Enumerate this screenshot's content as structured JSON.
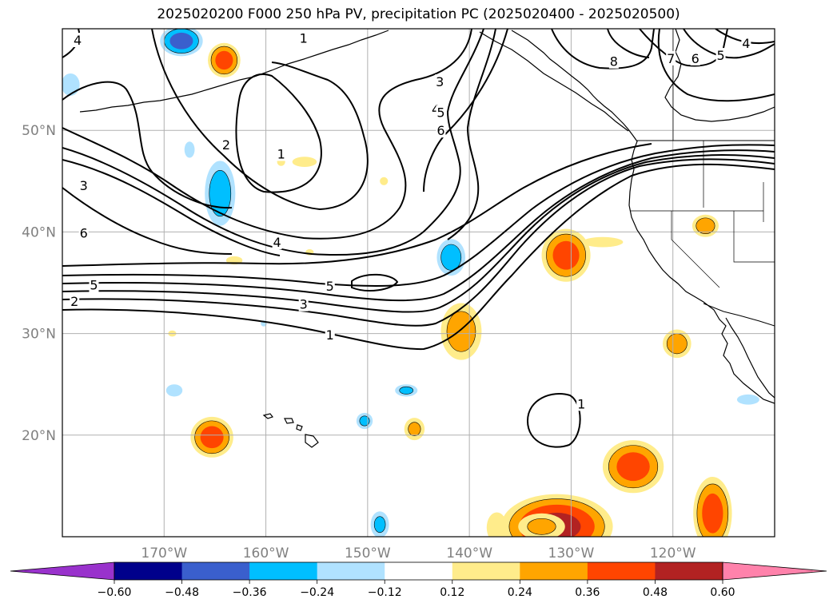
{
  "title": "2025020200 F000 250 hPa PV, precipitation PC (2025020400 - 2025020500)",
  "map": {
    "lon_range": [
      -180,
      -110
    ],
    "lat_range": [
      10,
      60
    ],
    "lon_ticks": [
      -170,
      -160,
      -150,
      -140,
      -130,
      -120
    ],
    "lat_ticks": [
      20,
      30,
      40,
      50
    ],
    "lon_labels": [
      "170°W",
      "160°W",
      "150°W",
      "140°W",
      "130°W",
      "120°W"
    ],
    "lat_labels": [
      "20°N",
      "30°N",
      "40°N",
      "50°N"
    ],
    "gridlines": true
  },
  "pv_contours": {
    "levels": [
      1,
      2,
      3,
      4,
      5,
      6,
      7,
      8
    ],
    "labels": [
      {
        "text": "4",
        "lon": -178.5,
        "lat": 58.9
      },
      {
        "text": "1",
        "lon": -156.3,
        "lat": 59.1
      },
      {
        "text": "3",
        "lon": -142.9,
        "lat": 54.8
      },
      {
        "text": "4",
        "lon": -143.3,
        "lat": 52.1
      },
      {
        "text": "5",
        "lon": -142.8,
        "lat": 51.8
      },
      {
        "text": "6",
        "lon": -142.8,
        "lat": 50.0
      },
      {
        "text": "8",
        "lon": -125.8,
        "lat": 56.8
      },
      {
        "text": "7",
        "lon": -120.2,
        "lat": 57.1
      },
      {
        "text": "6",
        "lon": -117.8,
        "lat": 57.1
      },
      {
        "text": "5",
        "lon": -115.3,
        "lat": 57.4
      },
      {
        "text": "4",
        "lon": -112.8,
        "lat": 58.6
      },
      {
        "text": "2",
        "lon": -163.9,
        "lat": 48.6
      },
      {
        "text": "1",
        "lon": -158.5,
        "lat": 47.7
      },
      {
        "text": "3",
        "lon": -177.9,
        "lat": 44.6
      },
      {
        "text": "6",
        "lon": -177.9,
        "lat": 39.9
      },
      {
        "text": "4",
        "lon": -158.9,
        "lat": 39.0
      },
      {
        "text": "5",
        "lon": -176.9,
        "lat": 34.8
      },
      {
        "text": "2",
        "lon": -178.8,
        "lat": 33.2
      },
      {
        "text": "5",
        "lon": -153.7,
        "lat": 34.7
      },
      {
        "text": "3",
        "lon": -156.3,
        "lat": 32.9
      },
      {
        "text": "1",
        "lon": -153.7,
        "lat": 29.9
      },
      {
        "text": "1",
        "lon": -129.0,
        "lat": 23.1
      }
    ]
  },
  "precip_pc": {
    "regions": [
      {
        "lon": -130.5,
        "lat": 37.7,
        "rx": 2.4,
        "ry": 2.6,
        "max": 0.4
      },
      {
        "lon": -123.9,
        "lat": 16.9,
        "rx": 3.0,
        "ry": 2.6,
        "max": 0.4
      },
      {
        "lon": -131.4,
        "lat": 11.0,
        "rx": 5.5,
        "ry": 3.2,
        "max": 0.5
      },
      {
        "lon": -116.1,
        "lat": 12.3,
        "rx": 1.9,
        "ry": 3.6,
        "max": 0.4
      },
      {
        "lon": -165.3,
        "lat": 19.8,
        "rx": 2.1,
        "ry": 2.0,
        "max": 0.4
      },
      {
        "lon": -164.1,
        "lat": 56.9,
        "rx": 1.6,
        "ry": 1.7,
        "max": 0.4
      },
      {
        "lon": -140.8,
        "lat": 30.2,
        "rx": 2.0,
        "ry": 2.8,
        "max": 0.3
      },
      {
        "lon": -119.6,
        "lat": 29.0,
        "rx": 1.4,
        "ry": 1.4,
        "max": 0.3
      },
      {
        "lon": -116.8,
        "lat": 40.6,
        "rx": 1.3,
        "ry": 1.1,
        "max": 0.3
      },
      {
        "lon": -145.4,
        "lat": 20.6,
        "rx": 1.0,
        "ry": 1.1,
        "max": 0.25
      },
      {
        "lon": -132.9,
        "lat": 11.0,
        "rx": 2.3,
        "ry": 1.3,
        "max": 0.25
      },
      {
        "lon": -137.3,
        "lat": 10.9,
        "rx": 1.0,
        "ry": 1.5,
        "max": 0.22
      },
      {
        "lon": -126.9,
        "lat": 39.0,
        "rx": 2.0,
        "ry": 0.5,
        "max": 0.24
      },
      {
        "lon": -156.2,
        "lat": 46.9,
        "rx": 1.2,
        "ry": 0.5,
        "max": 0.22
      },
      {
        "lon": -167.5,
        "lat": 58.6,
        "rx": 0.6,
        "ry": 0.4,
        "max": 0.2
      },
      {
        "lon": -158.5,
        "lat": 46.9,
        "rx": 0.4,
        "ry": 0.4,
        "max": 0.18
      },
      {
        "lon": -163.1,
        "lat": 37.2,
        "rx": 0.8,
        "ry": 0.4,
        "max": 0.18
      },
      {
        "lon": -155.7,
        "lat": 38.0,
        "rx": 0.4,
        "ry": 0.3,
        "max": 0.16
      },
      {
        "lon": -148.4,
        "lat": 45.0,
        "rx": 0.4,
        "ry": 0.4,
        "max": 0.18
      },
      {
        "lon": -169.2,
        "lat": 30.0,
        "rx": 0.4,
        "ry": 0.3,
        "max": 0.18
      },
      {
        "lon": -168.3,
        "lat": 58.8,
        "rx": 2.1,
        "ry": 1.5,
        "min": -0.4
      },
      {
        "lon": -164.5,
        "lat": 43.8,
        "rx": 1.5,
        "ry": 3.2,
        "min": -0.3
      },
      {
        "lon": -141.8,
        "lat": 37.5,
        "rx": 1.4,
        "ry": 1.8,
        "min": -0.3
      },
      {
        "lon": -179.2,
        "lat": 54.5,
        "rx": 0.9,
        "ry": 1.1,
        "min": -0.2
      },
      {
        "lon": -146.2,
        "lat": 24.4,
        "rx": 1.1,
        "ry": 0.6,
        "min": -0.25
      },
      {
        "lon": -150.3,
        "lat": 21.4,
        "rx": 0.8,
        "ry": 0.8,
        "min": -0.25
      },
      {
        "lon": -169.0,
        "lat": 24.4,
        "rx": 0.8,
        "ry": 0.6,
        "min": -0.2
      },
      {
        "lon": -167.5,
        "lat": 48.1,
        "rx": 0.5,
        "ry": 0.8,
        "min": -0.18
      },
      {
        "lon": -148.8,
        "lat": 11.2,
        "rx": 0.9,
        "ry": 1.3,
        "min": -0.25
      },
      {
        "lon": -112.6,
        "lat": 23.5,
        "rx": 1.1,
        "ry": 0.5,
        "min": -0.2
      },
      {
        "lon": -160.2,
        "lat": 31.0,
        "rx": 0.3,
        "ry": 0.3,
        "min": -0.15
      }
    ]
  },
  "colorbar": {
    "ticks": [
      "−0.60",
      "−0.48",
      "−0.36",
      "−0.24",
      "−0.12",
      "0.12",
      "0.24",
      "0.36",
      "0.48",
      "0.60"
    ],
    "colors": [
      "#9932cc",
      "#00008b",
      "#3a5fcd",
      "#00bfff",
      "#b0e2ff",
      "#ffffff",
      "#ffec8b",
      "#ffa500",
      "#ff4500",
      "#b22222",
      "#ff82ab"
    ],
    "extend": "both"
  }
}
